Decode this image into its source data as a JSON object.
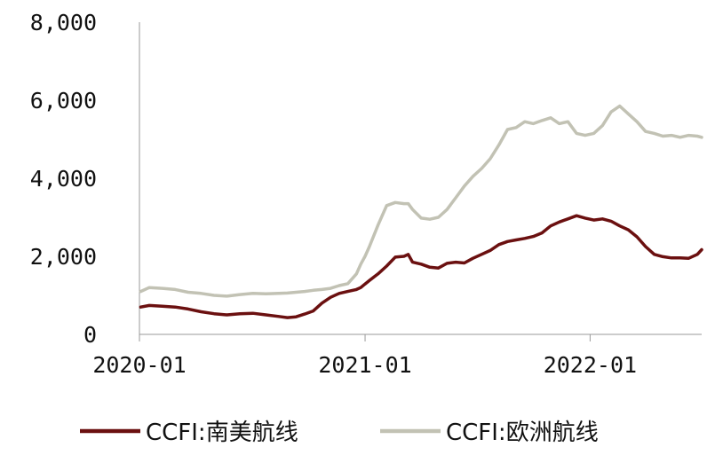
{
  "chart_data": {
    "type": "line",
    "title": "",
    "xlabel": "",
    "ylabel": "",
    "ylim": [
      0,
      8000
    ],
    "y_ticks": [
      0,
      2000,
      4000,
      6000,
      8000
    ],
    "y_tick_labels": [
      "0",
      "2,000",
      "4,000",
      "6,000",
      "8,000"
    ],
    "x_ticks": [
      "2020-01",
      "2021-01",
      "2022-01"
    ],
    "xlim": [
      "2020-01",
      "2022-07"
    ],
    "grid": false,
    "legend_position": "bottom",
    "series": [
      {
        "name": "CCFI:南美航线",
        "color": "#6b1010",
        "points": [
          [
            "2020-01-03",
            700
          ],
          [
            "2020-01-17",
            740
          ],
          [
            "2020-02-07",
            720
          ],
          [
            "2020-02-28",
            700
          ],
          [
            "2020-03-20",
            650
          ],
          [
            "2020-04-10",
            580
          ],
          [
            "2020-05-01",
            530
          ],
          [
            "2020-05-22",
            500
          ],
          [
            "2020-06-12",
            530
          ],
          [
            "2020-07-03",
            540
          ],
          [
            "2020-07-24",
            500
          ],
          [
            "2020-08-14",
            460
          ],
          [
            "2020-08-28",
            430
          ],
          [
            "2020-09-11",
            450
          ],
          [
            "2020-09-25",
            520
          ],
          [
            "2020-10-09",
            600
          ],
          [
            "2020-10-23",
            800
          ],
          [
            "2020-11-06",
            950
          ],
          [
            "2020-11-20",
            1050
          ],
          [
            "2020-12-04",
            1100
          ],
          [
            "2020-12-18",
            1150
          ],
          [
            "2020-12-25",
            1200
          ],
          [
            "2021-01-01",
            1290
          ],
          [
            "2021-01-08",
            1380
          ],
          [
            "2021-01-22",
            1550
          ],
          [
            "2021-02-05",
            1750
          ],
          [
            "2021-02-19",
            1980
          ],
          [
            "2021-03-05",
            2000
          ],
          [
            "2021-03-12",
            2050
          ],
          [
            "2021-03-19",
            1850
          ],
          [
            "2021-04-02",
            1800
          ],
          [
            "2021-04-16",
            1720
          ],
          [
            "2021-04-30",
            1700
          ],
          [
            "2021-05-14",
            1820
          ],
          [
            "2021-05-28",
            1850
          ],
          [
            "2021-06-11",
            1830
          ],
          [
            "2021-06-25",
            1950
          ],
          [
            "2021-07-09",
            2050
          ],
          [
            "2021-07-23",
            2150
          ],
          [
            "2021-08-06",
            2300
          ],
          [
            "2021-08-20",
            2380
          ],
          [
            "2021-09-03",
            2420
          ],
          [
            "2021-09-17",
            2460
          ],
          [
            "2021-10-01",
            2510
          ],
          [
            "2021-10-15",
            2600
          ],
          [
            "2021-10-29",
            2780
          ],
          [
            "2021-11-12",
            2880
          ],
          [
            "2021-11-26",
            2960
          ],
          [
            "2021-12-10",
            3040
          ],
          [
            "2021-12-24",
            2980
          ],
          [
            "2022-01-07",
            2930
          ],
          [
            "2022-01-21",
            2960
          ],
          [
            "2022-02-04",
            2900
          ],
          [
            "2022-02-18",
            2780
          ],
          [
            "2022-03-04",
            2680
          ],
          [
            "2022-03-18",
            2500
          ],
          [
            "2022-04-01",
            2250
          ],
          [
            "2022-04-15",
            2050
          ],
          [
            "2022-04-29",
            1990
          ],
          [
            "2022-05-13",
            1960
          ],
          [
            "2022-05-27",
            1960
          ],
          [
            "2022-06-10",
            1950
          ],
          [
            "2022-06-24",
            2050
          ],
          [
            "2022-07-01",
            2170
          ]
        ]
      },
      {
        "name": "CCFI:欧洲航线",
        "color": "#c2c2b4",
        "points": [
          [
            "2020-01-03",
            1100
          ],
          [
            "2020-01-17",
            1200
          ],
          [
            "2020-02-07",
            1180
          ],
          [
            "2020-02-28",
            1150
          ],
          [
            "2020-03-20",
            1080
          ],
          [
            "2020-04-10",
            1050
          ],
          [
            "2020-05-01",
            1000
          ],
          [
            "2020-05-22",
            980
          ],
          [
            "2020-06-12",
            1020
          ],
          [
            "2020-07-03",
            1050
          ],
          [
            "2020-07-24",
            1040
          ],
          [
            "2020-08-14",
            1050
          ],
          [
            "2020-08-28",
            1060
          ],
          [
            "2020-09-11",
            1080
          ],
          [
            "2020-09-25",
            1100
          ],
          [
            "2020-10-09",
            1130
          ],
          [
            "2020-10-23",
            1150
          ],
          [
            "2020-11-06",
            1180
          ],
          [
            "2020-11-20",
            1250
          ],
          [
            "2020-12-04",
            1300
          ],
          [
            "2020-12-18",
            1550
          ],
          [
            "2020-12-25",
            1800
          ],
          [
            "2021-01-01",
            2000
          ],
          [
            "2021-01-08",
            2250
          ],
          [
            "2021-01-22",
            2800
          ],
          [
            "2021-02-05",
            3300
          ],
          [
            "2021-02-19",
            3380
          ],
          [
            "2021-03-05",
            3350
          ],
          [
            "2021-03-12",
            3350
          ],
          [
            "2021-03-19",
            3200
          ],
          [
            "2021-04-02",
            2980
          ],
          [
            "2021-04-16",
            2950
          ],
          [
            "2021-04-30",
            3000
          ],
          [
            "2021-05-14",
            3200
          ],
          [
            "2021-05-28",
            3500
          ],
          [
            "2021-06-11",
            3800
          ],
          [
            "2021-06-25",
            4050
          ],
          [
            "2021-07-09",
            4250
          ],
          [
            "2021-07-23",
            4500
          ],
          [
            "2021-08-06",
            4850
          ],
          [
            "2021-08-20",
            5250
          ],
          [
            "2021-09-03",
            5300
          ],
          [
            "2021-09-17",
            5450
          ],
          [
            "2021-10-01",
            5400
          ],
          [
            "2021-10-15",
            5480
          ],
          [
            "2021-10-29",
            5550
          ],
          [
            "2021-11-12",
            5400
          ],
          [
            "2021-11-26",
            5450
          ],
          [
            "2021-12-10",
            5150
          ],
          [
            "2021-12-24",
            5100
          ],
          [
            "2022-01-07",
            5150
          ],
          [
            "2022-01-21",
            5350
          ],
          [
            "2022-02-04",
            5700
          ],
          [
            "2022-02-18",
            5850
          ],
          [
            "2022-03-04",
            5650
          ],
          [
            "2022-03-18",
            5450
          ],
          [
            "2022-04-01",
            5200
          ],
          [
            "2022-04-15",
            5150
          ],
          [
            "2022-04-29",
            5080
          ],
          [
            "2022-05-13",
            5100
          ],
          [
            "2022-05-27",
            5050
          ],
          [
            "2022-06-10",
            5100
          ],
          [
            "2022-06-24",
            5080
          ],
          [
            "2022-07-01",
            5050
          ]
        ]
      }
    ]
  }
}
